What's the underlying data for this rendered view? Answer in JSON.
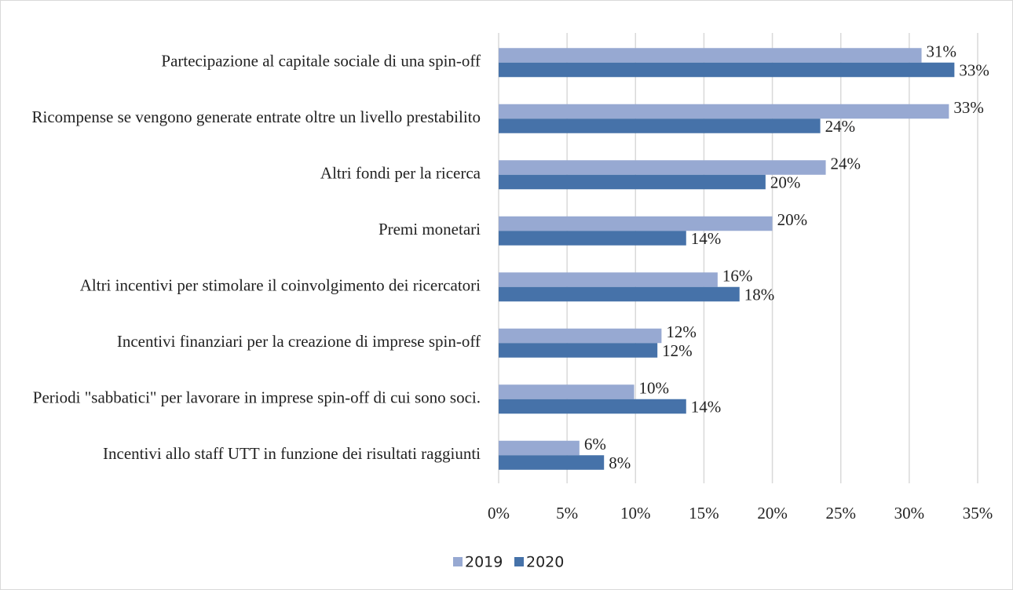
{
  "chart_data": {
    "type": "hbar",
    "categories": [
      "Partecipazione al capitale sociale di una spin-off",
      "Ricompense se vengono generate entrate oltre un livello prestabilito",
      "Altri fondi per la ricerca",
      "Premi monetari",
      "Altri incentivi per stimolare il coinvolgimento dei ricercatori",
      "Incentivi finanziari per la creazione di imprese spin-off",
      "Periodi \"sabbatici\" per lavorare in imprese spin-off di cui sono soci.",
      "Incentivi allo staff UTT in funzione dei risultati raggiunti"
    ],
    "series": [
      {
        "name": "2019",
        "color": "#97a9d2",
        "values": [
          30.9,
          32.9,
          23.9,
          20,
          16,
          11.9,
          9.9,
          5.9
        ],
        "value_labels": [
          "31%",
          "33%",
          "24%",
          "20%",
          "16%",
          "12%",
          "10%",
          "6%"
        ]
      },
      {
        "name": "2020",
        "color": "#4672a9",
        "values": [
          33.3,
          23.5,
          19.5,
          13.7,
          17.6,
          11.6,
          13.7,
          7.7
        ],
        "value_labels": [
          "33%",
          "24%",
          "20%",
          "14%",
          "18%",
          "12%",
          "14%",
          "8%"
        ]
      }
    ],
    "xlim": [
      0,
      35
    ],
    "xticks": [
      {
        "value": 0,
        "label": "0%"
      },
      {
        "value": 5,
        "label": "5%"
      },
      {
        "value": 10,
        "label": "10%"
      },
      {
        "value": 15,
        "label": "15%"
      },
      {
        "value": 20,
        "label": "20%"
      },
      {
        "value": 25,
        "label": "25%"
      },
      {
        "value": 30,
        "label": "30%"
      },
      {
        "value": 35,
        "label": "35%"
      }
    ],
    "grid": true,
    "legend": "bottom"
  }
}
